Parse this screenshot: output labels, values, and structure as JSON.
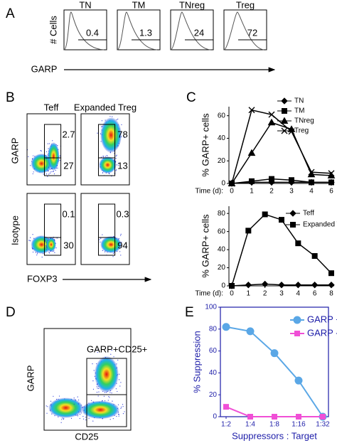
{
  "panel_a": {
    "letter": "A",
    "ylabel": "# Cells",
    "xlabel": "GARP",
    "plots": [
      {
        "title": "TN",
        "gate": "0.4"
      },
      {
        "title": "TM",
        "gate": "1.3"
      },
      {
        "title": "TNreg",
        "gate": "24"
      },
      {
        "title": "Treg",
        "gate": "72"
      }
    ]
  },
  "panel_b": {
    "letter": "B",
    "columns": [
      "Teff",
      "Expanded Treg"
    ],
    "rows": [
      "GARP",
      "Isotype"
    ],
    "xlabel": "FOXP3",
    "gates": [
      [
        "2.7",
        "27"
      ],
      [
        "78",
        "13"
      ],
      [
        "0.1",
        "30"
      ],
      [
        "0.3",
        "94"
      ]
    ]
  },
  "panel_d": {
    "letter": "D",
    "ylabel": "GARP",
    "xlabel": "CD25",
    "gate_label": "GARP+CD25+"
  },
  "chart_data": [
    {
      "type": "line",
      "letter": "C",
      "ylabel": "% GARP+ cells",
      "xlabel": "Time (d):",
      "categories": [
        "0",
        "1",
        "2",
        "3",
        "4",
        "6"
      ],
      "ylim": [
        0,
        68
      ],
      "yticks": [
        0,
        20,
        40,
        60
      ],
      "legend": "upper right",
      "series": [
        {
          "name": "TN",
          "color": "#000000",
          "marker": "diamond",
          "values": [
            0,
            1,
            1,
            1,
            1,
            1
          ]
        },
        {
          "name": "TM",
          "color": "#000000",
          "marker": "square",
          "values": [
            0,
            2,
            4,
            3,
            1,
            1
          ]
        },
        {
          "name": "TNreg",
          "color": "#000000",
          "marker": "triangle",
          "values": [
            0,
            27,
            54,
            48,
            8,
            7
          ]
        },
        {
          "name": "Treg",
          "color": "#000000",
          "marker": "x",
          "values": [
            0,
            65,
            61,
            46,
            10,
            9
          ]
        }
      ]
    },
    {
      "type": "line",
      "ylabel": "% GARP+ cells",
      "xlabel": "Time (d):",
      "categories": [
        "0",
        "1",
        "2",
        "3",
        "4",
        "6",
        "8"
      ],
      "ylim": [
        0,
        88
      ],
      "yticks": [
        0,
        20,
        40,
        60,
        80
      ],
      "legend": "upper right",
      "series": [
        {
          "name": "Teff",
          "color": "#000000",
          "marker": "diamond",
          "values": [
            0,
            1,
            2,
            1,
            1,
            1,
            1
          ]
        },
        {
          "name": "Expanded Treg",
          "color": "#000000",
          "marker": "square",
          "values": [
            0,
            61,
            79,
            73,
            47,
            33,
            14
          ]
        }
      ]
    },
    {
      "type": "line",
      "letter": "E",
      "ylabel": "% Suppression",
      "xlabel": "Suppressors : Target",
      "axis_color": "#1c1ca8",
      "categories": [
        "1:2",
        "1:4",
        "1:8",
        "1:16",
        "1:32"
      ],
      "ylim": [
        0,
        100
      ],
      "yticks": [
        0,
        20,
        40,
        60,
        80,
        100
      ],
      "legend": "upper right",
      "series": [
        {
          "name": "GARP +",
          "color": "#5aa7e6",
          "marker": "circle",
          "values": [
            82,
            78,
            58,
            33,
            0
          ]
        },
        {
          "name": "GARP -",
          "color": "#f04fd6",
          "marker": "square",
          "values": [
            9,
            0,
            0,
            0,
            0
          ]
        }
      ]
    }
  ]
}
